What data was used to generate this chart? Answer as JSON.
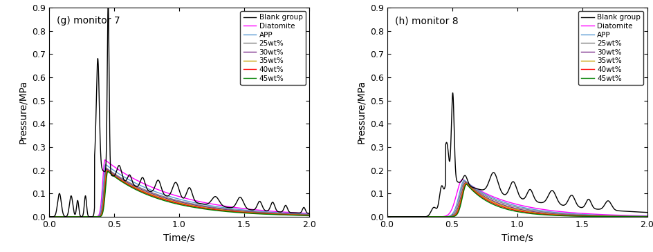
{
  "title_left": "(g) monitor 7",
  "title_right": "(h) monitor 8",
  "xlabel": "Time/s",
  "ylabel": "Pressure/MPa",
  "xlim": [
    0.0,
    2.0
  ],
  "ylim": [
    0.0,
    0.9
  ],
  "yticks": [
    0.0,
    0.1,
    0.2,
    0.3,
    0.4,
    0.5,
    0.6,
    0.7,
    0.8,
    0.9
  ],
  "xticks": [
    0.0,
    0.5,
    1.0,
    1.5,
    2.0
  ],
  "legend_labels": [
    "Blank group",
    "Diatomite",
    "APP",
    "25wt%",
    "30wt%",
    "35wt%",
    "40wt%",
    "45wt%"
  ],
  "colors": [
    "#000000",
    "#FF00FF",
    "#5B9BD5",
    "#808080",
    "#7B2D8B",
    "#C8A000",
    "#FF0000",
    "#008000"
  ],
  "linewidth": 1.0
}
